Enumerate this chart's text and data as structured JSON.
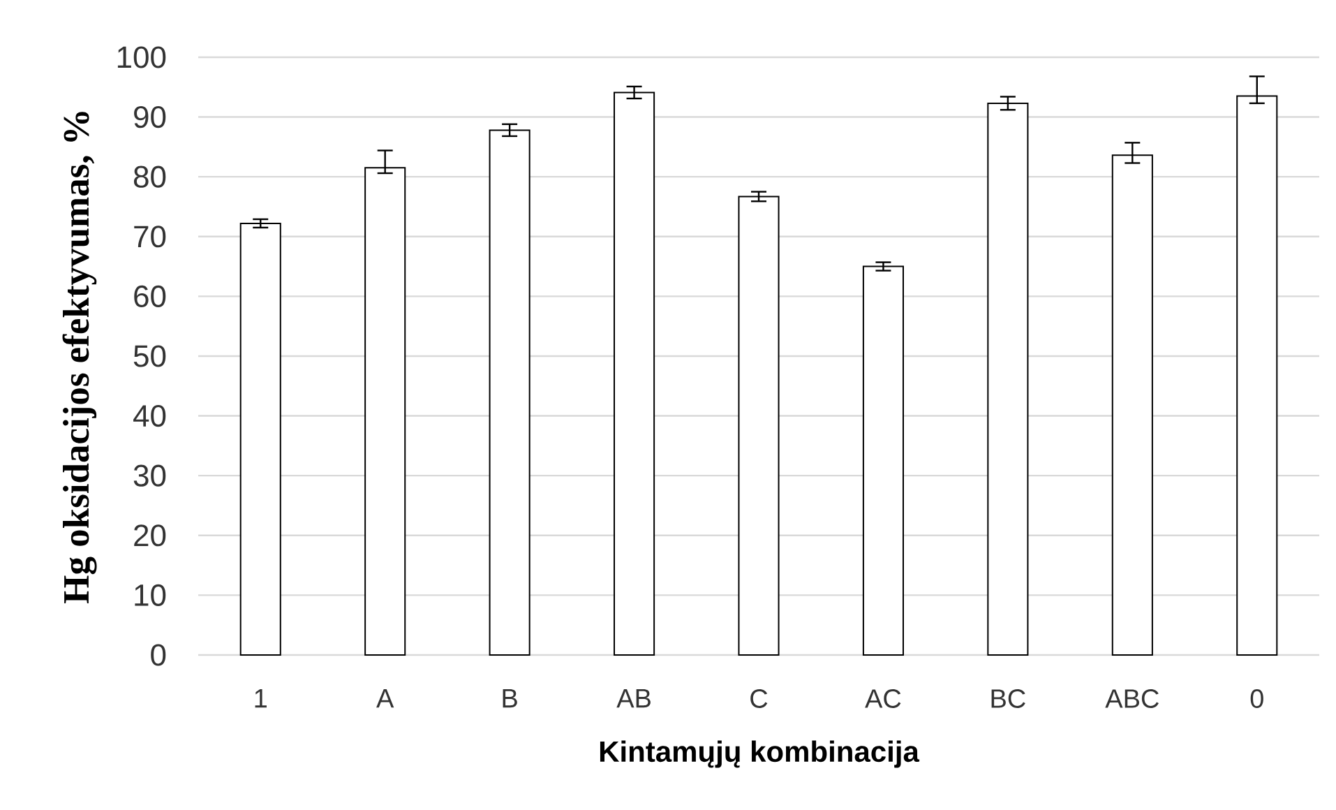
{
  "chart_data": {
    "type": "bar",
    "xlabel": "Kintamųjų kombinacija",
    "ylabel": "Hg oksidacijos efektyvumas, %",
    "categories": [
      "1",
      "A",
      "B",
      "AB",
      "C",
      "AC",
      "BC",
      "ABC",
      "0"
    ],
    "values": [
      72.2,
      81.5,
      87.8,
      94.1,
      76.7,
      65.0,
      92.3,
      83.6,
      93.5
    ],
    "errors": [
      0.7,
      [
        80.6,
        84.4
      ],
      1.0,
      1.0,
      0.8,
      0.7,
      1.1,
      [
        82.3,
        85.7
      ],
      [
        92.3,
        96.8
      ]
    ],
    "color": "#ffffff",
    "ylim": [
      0,
      100
    ],
    "yticks": [
      0,
      10,
      20,
      30,
      40,
      50,
      60,
      70,
      80,
      90,
      100
    ],
    "grid": "y"
  }
}
